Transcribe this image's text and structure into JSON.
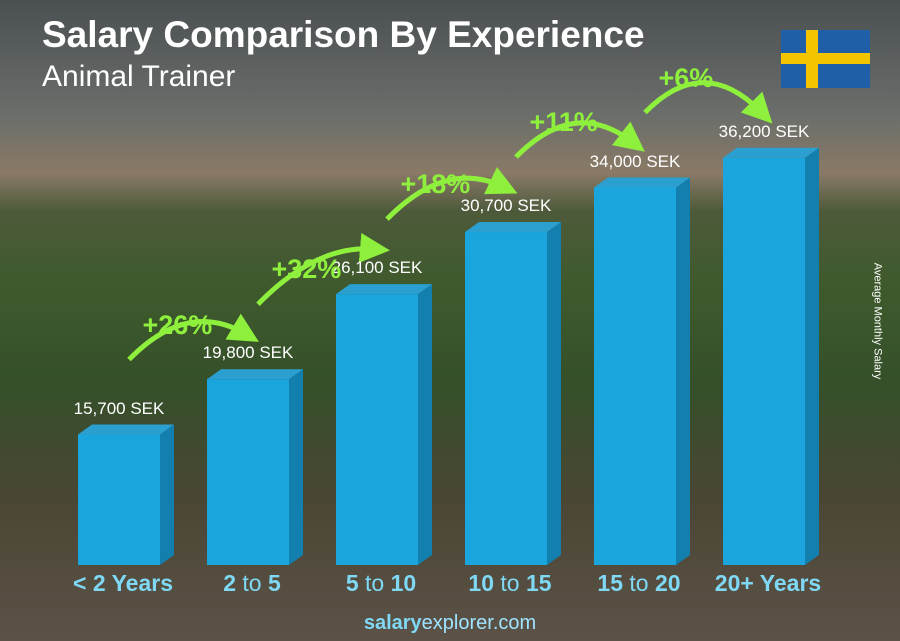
{
  "title": "Salary Comparison By Experience",
  "subtitle": "Animal Trainer",
  "flag": "sweden-flag",
  "footer": {
    "brand_bold": "salary",
    "brand_rest": "explorer",
    "tld": ".com"
  },
  "colors": {
    "bar": "#1aa6dc",
    "bar_side": "#137fae",
    "bar_top": "#2b9fd0",
    "pct": "#8ef03c",
    "label": "#7fd9f5"
  },
  "chart_data": {
    "type": "bar",
    "ylabel": "Average Monthly Salary",
    "categories": [
      [
        "< 2 Years",
        "",
        ""
      ],
      [
        "2",
        " to ",
        "5"
      ],
      [
        "5",
        " to ",
        "10"
      ],
      [
        "10",
        " to ",
        "15"
      ],
      [
        "15",
        " to ",
        "20"
      ],
      [
        "20+ Years",
        "",
        ""
      ]
    ],
    "values": [
      15700,
      19800,
      26100,
      30700,
      34000,
      36200
    ],
    "value_labels": [
      "15,700 SEK",
      "19,800 SEK",
      "26,100 SEK",
      "30,700 SEK",
      "34,000 SEK",
      "36,200 SEK"
    ],
    "changes": [
      "+26%",
      "+32%",
      "+18%",
      "+11%",
      "+6%"
    ]
  }
}
